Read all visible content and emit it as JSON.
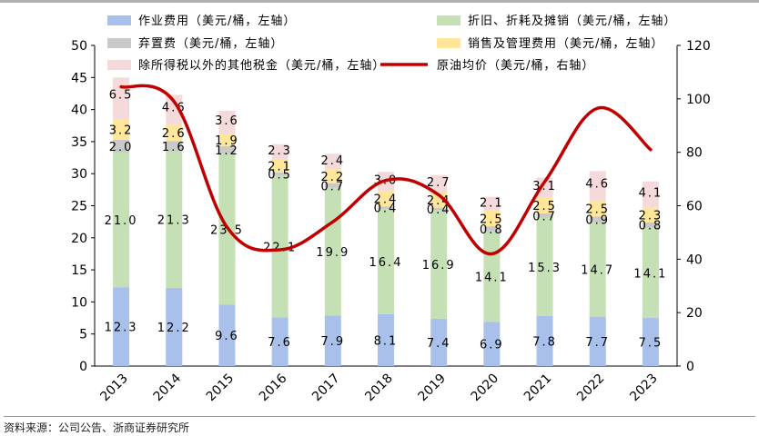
{
  "chart_data": {
    "type": "bar",
    "stacked": true,
    "categories": [
      "2013",
      "2014",
      "2015",
      "2016",
      "2017",
      "2018",
      "2019",
      "2020",
      "2021",
      "2022",
      "2023"
    ],
    "series": [
      {
        "name": "作业费用（美元/桶，左轴）",
        "color": "#a9c0ea",
        "axis": "left",
        "values": [
          12.3,
          12.2,
          9.6,
          7.6,
          7.9,
          8.1,
          7.4,
          6.9,
          7.8,
          7.7,
          7.5
        ],
        "labels": [
          "12.3",
          "12.2",
          "9.6",
          "7.6",
          "7.9",
          "8.1",
          "7.4",
          "6.9",
          "7.8",
          "7.7",
          "7.5"
        ]
      },
      {
        "name": "折旧、折耗及摊销（美元/桶，左轴）",
        "color": "#c5e0b4",
        "axis": "left",
        "values": [
          21.0,
          21.3,
          23.5,
          22.1,
          19.9,
          16.4,
          16.9,
          14.1,
          15.3,
          14.7,
          14.1
        ],
        "labels": [
          "21.0",
          "21.3",
          "23.5",
          "22.1",
          "19.9",
          "16.4",
          "16.9",
          "14.1",
          "15.3",
          "14.7",
          "14.1"
        ]
      },
      {
        "name": "弃置费（美元/桶，左轴）",
        "color": "#c9c9c9",
        "axis": "left",
        "values": [
          2.0,
          1.6,
          1.2,
          0.5,
          0.7,
          0.4,
          0.4,
          0.8,
          0.7,
          0.9,
          0.8
        ],
        "labels": [
          "2.0",
          "1.6",
          "1.2",
          "0.5",
          "0.7",
          "0.4",
          "0.4",
          "0.8",
          "0.7",
          "0.9",
          "0.8"
        ]
      },
      {
        "name": "销售及管理费用（美元/桶，左轴）",
        "color": "#ffe699",
        "axis": "left",
        "values": [
          3.2,
          2.6,
          1.9,
          2.1,
          2.2,
          2.4,
          2.4,
          2.5,
          2.5,
          2.5,
          2.3
        ],
        "labels": [
          "3.2",
          "2.6",
          "1.9",
          "2.1",
          "2.2",
          "2.4",
          "2.4",
          "2.5",
          "2.5",
          "2.5",
          "2.3"
        ]
      },
      {
        "name": "除所得税以外的其他税金（美元/桶，左轴）",
        "color": "#f4dada",
        "axis": "left",
        "values": [
          6.5,
          4.6,
          3.6,
          2.3,
          2.4,
          3.0,
          2.7,
          2.1,
          3.1,
          4.6,
          4.1
        ],
        "labels": [
          "6.5",
          "4.6",
          "3.6",
          "2.3",
          "2.4",
          "3.0",
          "2.7",
          "2.1",
          "3.1",
          "4.6",
          "4.1"
        ]
      }
    ],
    "line": {
      "name": "原油均价（美元/桶，右轴）",
      "color": "#c00000",
      "axis": "right",
      "values": [
        104.5,
        99,
        52,
        43.5,
        54,
        69.5,
        64,
        42,
        69,
        96.5,
        81
      ]
    },
    "yleft": {
      "min": 0,
      "max": 50,
      "ticks": [
        "0",
        "5",
        "10",
        "15",
        "20",
        "25",
        "30",
        "35",
        "40",
        "45",
        "50"
      ]
    },
    "yright": {
      "min": 0,
      "max": 120,
      "ticks": [
        "0",
        "20",
        "40",
        "60",
        "80",
        "100",
        "120"
      ]
    },
    "legend_position": "top",
    "grid": false
  },
  "source": "资料来源：公司公告、浙商证券研究所"
}
